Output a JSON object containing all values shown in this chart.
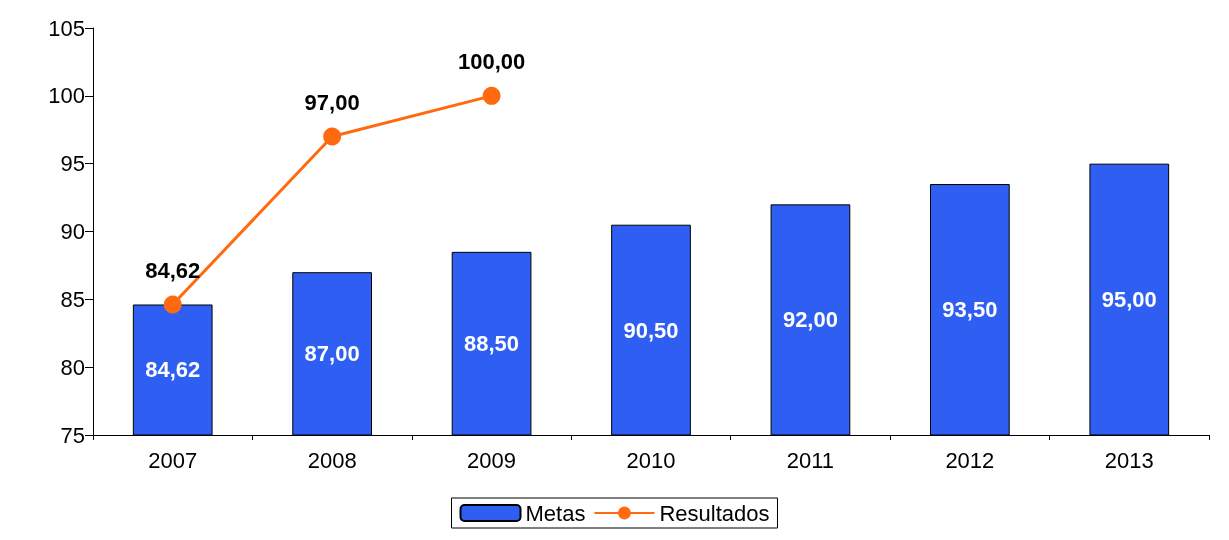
{
  "chart_data": {
    "type": "bar",
    "categories": [
      "2007",
      "2008",
      "2009",
      "2010",
      "2011",
      "2012",
      "2013"
    ],
    "series": [
      {
        "name": "Metas",
        "type": "bar",
        "color": "#2f5ff2",
        "values": [
          84.62,
          87,
          88.5,
          90.5,
          92,
          93.5,
          95
        ],
        "value_labels": [
          "84,62",
          "87,00",
          "88,50",
          "90,50",
          "92,00",
          "93,50",
          "95,00"
        ]
      },
      {
        "name": "Resultados",
        "type": "line",
        "color": "#ff6a10",
        "values": [
          84.62,
          97,
          100,
          null,
          null,
          null,
          null
        ],
        "value_labels": [
          "84,62",
          "97,00",
          "100,00",
          null,
          null,
          null,
          null
        ]
      }
    ],
    "ylim": [
      75,
      105
    ],
    "yticks": [
      75,
      80,
      85,
      90,
      95,
      100,
      105
    ],
    "grid": false,
    "legend": "bottom",
    "marker": "circle",
    "line_style": "solid"
  }
}
